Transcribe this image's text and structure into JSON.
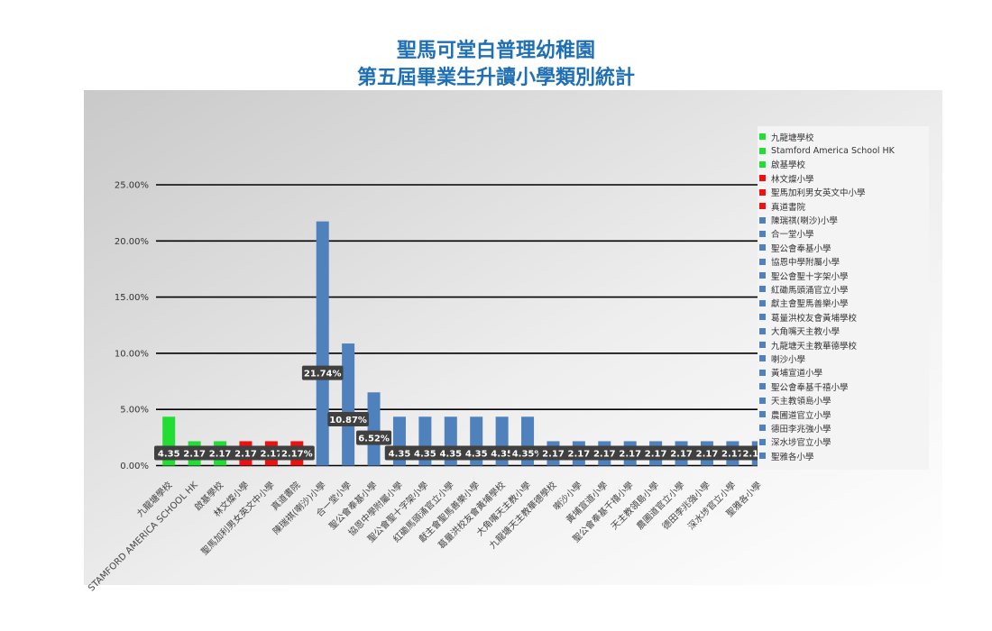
{
  "title": {
    "line1": "聖馬可堂白普理幼稚園",
    "line2": "第五屆畢業生升讀小學類別統計"
  },
  "colors": {
    "green": "#22dd33",
    "red": "#ee1111",
    "blue": "#4f81bd",
    "title": "#1f6fb5",
    "label_bg": "#404040"
  },
  "chart_data": {
    "type": "bar",
    "title": "聖馬可堂白普理幼稚園 第五屆畢業生升讀小學類別統計",
    "xlabel": "",
    "ylabel": "",
    "ylim": [
      0,
      25
    ],
    "yticks": [
      {
        "value": 0,
        "label": "0.00%"
      },
      {
        "value": 5,
        "label": "5.00%"
      },
      {
        "value": 10,
        "label": "10.00%"
      },
      {
        "value": 15,
        "label": "15.00%"
      },
      {
        "value": 20,
        "label": "20.00%"
      },
      {
        "value": 25,
        "label": "25.00%"
      }
    ],
    "grid": true,
    "legend_position": "right",
    "categories": [
      "九龍塘學校",
      "STAMFORD AMERICA SCHOOL HK",
      "啟基學校",
      "林文燦小學",
      "聖馬加利男女英文中小學",
      "真道書院",
      "陳瑞祺(喇沙)小學",
      "合一堂小學",
      "聖公會奉基小學",
      "協恩中學附屬小學",
      "聖公會聖十字架小學",
      "紅磡馬頭涌官立小學",
      "獻主會聖馬善樂小學",
      "葛量洪校友會黃埔學校",
      "大角嘴天主教小學",
      "九龍塘天主教華德學校",
      "喇沙小學",
      "黃埔宣道小學",
      "聖公會奉基千禧小學",
      "天主教領島小學",
      "農圃道官立小學",
      "德田李兆強小學",
      "深水埗官立小學",
      "聖雅各小學"
    ],
    "legend_labels": [
      "九龍塘學校",
      "Stamford America School HK",
      "啟基學校",
      "林文燦小學",
      "聖馬加利男女英文中小學",
      "真道書院",
      "陳瑞祺(喇沙)小學",
      "合一堂小學",
      "聖公會奉基小學",
      "協恩中學附屬小學",
      "聖公會聖十字架小學",
      "紅磡馬頭涌官立小學",
      "獻主會聖馬善樂小學",
      "葛量洪校友會黃埔學校",
      "大角嘴天主教小學",
      "九龍塘天主教華德學校",
      "喇沙小學",
      "黃埔宣道小學",
      "聖公會奉基千禧小學",
      "天主教領島小學",
      "農圃道官立小學",
      "德田李兆強小學",
      "深水埗官立小學",
      "聖雅各小學"
    ],
    "values": [
      4.35,
      2.17,
      2.17,
      2.17,
      2.17,
      2.17,
      21.74,
      10.87,
      6.52,
      4.35,
      4.35,
      4.35,
      4.35,
      4.35,
      4.35,
      2.17,
      2.17,
      2.17,
      2.17,
      2.17,
      2.17,
      2.17,
      2.17,
      2.17
    ],
    "data_labels": [
      "4.35",
      "2.17",
      "2.17",
      "2.17",
      "2.17",
      "2.17%",
      "21.74%",
      "10.87%",
      "6.52%",
      "4.35",
      "4.35",
      "4.35",
      "4.35",
      "4.35",
      "4.35%",
      "2.17",
      "2.17",
      "2.17",
      "2.17",
      "2.17",
      "2.17",
      "2.17",
      "2.17",
      "2.17%"
    ],
    "bar_color_keys": [
      "green",
      "green",
      "green",
      "red",
      "red",
      "red",
      "blue",
      "blue",
      "blue",
      "blue",
      "blue",
      "blue",
      "blue",
      "blue",
      "blue",
      "blue",
      "blue",
      "blue",
      "blue",
      "blue",
      "blue",
      "blue",
      "blue",
      "blue"
    ]
  }
}
